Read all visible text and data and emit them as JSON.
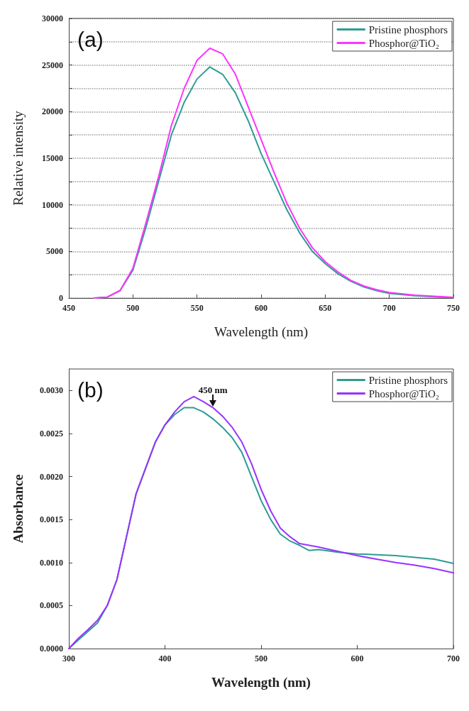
{
  "chart_data": [
    {
      "type": "line",
      "xlabel": "Wavelength (nm)",
      "ylabel": "Relative intensity",
      "annotations": [
        "(a)"
      ],
      "xlim": [
        450,
        750
      ],
      "xticks": [
        450,
        500,
        550,
        600,
        650,
        700,
        750
      ],
      "ylim": [
        0,
        30000
      ],
      "yticks": [
        0,
        {
          "value": 2500,
          "label": null
        },
        5000,
        {
          "value": 7500,
          "label": null
        },
        10000,
        {
          "value": 12500,
          "label": null
        },
        15000,
        {
          "value": 17500,
          "label": null
        },
        20000,
        {
          "value": 22500,
          "label": null
        },
        25000,
        {
          "value": 27500,
          "label": null
        },
        30000
      ],
      "grid": "y",
      "legend": "top right",
      "marker": "none",
      "line_style": "solid",
      "series": [
        {
          "name": "Pristine phosphors",
          "color": "#2e9c94",
          "x": [
            470,
            480,
            490,
            500,
            510,
            520,
            530,
            540,
            550,
            560,
            570,
            580,
            590,
            600,
            610,
            620,
            630,
            640,
            650,
            660,
            670,
            680,
            690,
            700,
            720,
            740,
            750
          ],
          "values": [
            0,
            100,
            800,
            3000,
            7500,
            12500,
            17500,
            21000,
            23500,
            24800,
            24000,
            22000,
            19000,
            15500,
            12500,
            9500,
            7000,
            5000,
            3700,
            2600,
            1800,
            1200,
            800,
            500,
            250,
            100,
            50
          ]
        },
        {
          "name": "Phosphor@TiO₂",
          "color": "#ff33ff",
          "x": [
            470,
            480,
            490,
            500,
            510,
            520,
            530,
            540,
            550,
            560,
            570,
            580,
            590,
            600,
            610,
            620,
            630,
            640,
            650,
            660,
            670,
            680,
            690,
            700,
            720,
            740,
            750
          ],
          "values": [
            0,
            100,
            800,
            3200,
            8000,
            13000,
            18500,
            22500,
            25500,
            26800,
            26200,
            24000,
            20500,
            17000,
            13500,
            10200,
            7500,
            5400,
            3900,
            2800,
            1900,
            1300,
            900,
            600,
            300,
            150,
            80
          ]
        }
      ]
    },
    {
      "type": "line",
      "xlabel": "Wavelength (nm)",
      "ylabel": "Absorbance",
      "annotations": [
        "(b)",
        {
          "text": "450 nm",
          "x": 450,
          "y": 0.0028
        }
      ],
      "xlim": [
        300,
        700
      ],
      "xticks": [
        300,
        400,
        500,
        600,
        700
      ],
      "ylim": [
        0,
        0.00325
      ],
      "yticks": [
        {
          "value": 0,
          "label": "0.0000"
        },
        {
          "value": 0.0005,
          "label": "0.0005"
        },
        {
          "value": 0.001,
          "label": "0.0010"
        },
        {
          "value": 0.0015,
          "label": "0.0015"
        },
        {
          "value": 0.002,
          "label": "0.0020"
        },
        {
          "value": 0.0025,
          "label": "0.0025"
        },
        {
          "value": 0.003,
          "label": "0.0030"
        }
      ],
      "grid": false,
      "legend": "top right",
      "marker": "none",
      "line_style": "solid",
      "series": [
        {
          "name": "Pristine phosphors",
          "color": "#2e9c94",
          "x": [
            300,
            310,
            320,
            330,
            340,
            350,
            360,
            370,
            380,
            390,
            400,
            410,
            420,
            430,
            440,
            450,
            460,
            470,
            480,
            490,
            500,
            510,
            520,
            530,
            540,
            550,
            560,
            580,
            600,
            620,
            640,
            660,
            680,
            700
          ],
          "values": [
            0,
            0.0001,
            0.0002,
            0.0003,
            0.0005,
            0.0008,
            0.0013,
            0.0018,
            0.0021,
            0.0024,
            0.0026,
            0.00272,
            0.0028,
            0.0028,
            0.00275,
            0.00267,
            0.00257,
            0.00245,
            0.00228,
            0.002,
            0.00172,
            0.0015,
            0.00133,
            0.00125,
            0.0012,
            0.00114,
            0.00115,
            0.00112,
            0.0011,
            0.00109,
            0.00108,
            0.00106,
            0.00104,
            0.00099
          ]
        },
        {
          "name": "Phosphor@TiO₂",
          "color": "#9933ff",
          "x": [
            300,
            310,
            320,
            330,
            340,
            350,
            360,
            370,
            380,
            390,
            400,
            410,
            420,
            430,
            440,
            450,
            460,
            470,
            480,
            490,
            500,
            510,
            520,
            530,
            540,
            560,
            580,
            600,
            620,
            640,
            660,
            680,
            700
          ],
          "values": [
            0,
            0.00012,
            0.00022,
            0.00033,
            0.0005,
            0.0008,
            0.0013,
            0.0018,
            0.0021,
            0.0024,
            0.0026,
            0.00275,
            0.00287,
            0.00293,
            0.00287,
            0.0028,
            0.0027,
            0.00257,
            0.0024,
            0.00215,
            0.00185,
            0.0016,
            0.0014,
            0.0013,
            0.00122,
            0.00118,
            0.00113,
            0.00108,
            0.00104,
            0.001,
            0.00097,
            0.00093,
            0.00088
          ]
        }
      ]
    }
  ]
}
